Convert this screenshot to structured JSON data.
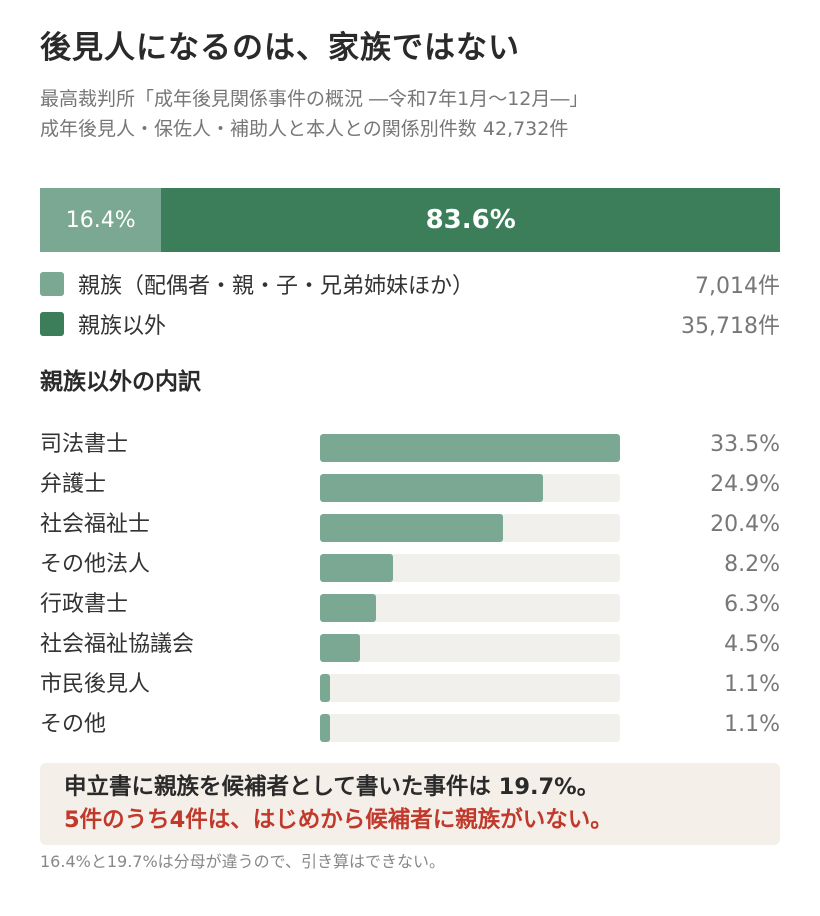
{
  "title": "後見人になるのは、家族ではない",
  "subtitle": {
    "line1": "最高裁判所「成年後見関係事件の概況 ―令和7年1月〜12月―」",
    "line2": "成年後見人・保佐人・補助人と本人との関係別件数 42,732件"
  },
  "colors": {
    "family": "#7aa892",
    "non_family": "#3c7d5a",
    "track": "#f1f0ec",
    "note_bg": "#f5efe9",
    "highlight": "#c0392b"
  },
  "chart_data": [
    {
      "type": "bar",
      "orientation": "horizontal-stacked",
      "unit": "%",
      "series": [
        {
          "name": "親族（配偶者・親・子・兄弟姉妹ほか）",
          "value": 16.4,
          "label": "16.4%",
          "count": "7,014件"
        },
        {
          "name": "親族以外",
          "value": 83.6,
          "label": "83.6%",
          "count": "35,718件"
        }
      ],
      "legend": "below"
    },
    {
      "type": "bar",
      "orientation": "horizontal",
      "title": "親族以外の内訳",
      "unit": "%",
      "categories": [
        "司法書士",
        "弁護士",
        "社会福祉士",
        "その他法人",
        "行政書士",
        "社会福祉協議会",
        "市民後見人",
        "その他"
      ],
      "values": [
        33.5,
        24.9,
        20.4,
        8.2,
        6.3,
        4.5,
        1.1,
        1.1
      ],
      "labels": [
        "33.5%",
        "24.9%",
        "20.4%",
        "8.2%",
        "6.3%",
        "4.5%",
        "1.1%",
        "1.1%"
      ],
      "xlim": [
        0,
        33.5
      ]
    }
  ],
  "note": {
    "line1": "申立書に親族を候補者として書いた事件は 19.7%。",
    "line2": "5件のうち4件は、はじめから候補者に親族がいない。"
  },
  "footnote": "16.4%と19.7%は分母が違うので、引き算はできない。"
}
